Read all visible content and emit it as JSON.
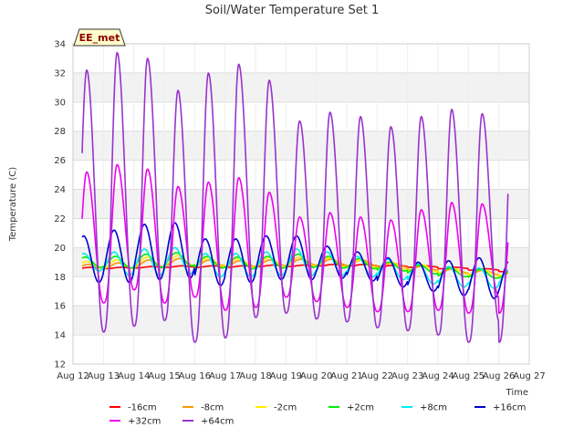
{
  "chart_data": {
    "type": "line",
    "title": "Soil/Water Temperature Set 1",
    "xlabel": "Time",
    "ylabel": "Temperature (C)",
    "badge": "EE_met",
    "ylim": [
      12,
      34
    ],
    "xlim": [
      12,
      27
    ],
    "yticks": [
      12,
      14,
      16,
      18,
      20,
      22,
      24,
      26,
      28,
      30,
      32,
      34
    ],
    "xticks": [
      {
        "v": 12,
        "label": "Aug 12"
      },
      {
        "v": 13,
        "label": "Aug 13"
      },
      {
        "v": 14,
        "label": "Aug 14"
      },
      {
        "v": 15,
        "label": "Aug 15"
      },
      {
        "v": 16,
        "label": "Aug 16"
      },
      {
        "v": 17,
        "label": "Aug 17"
      },
      {
        "v": 18,
        "label": "Aug 18"
      },
      {
        "v": 19,
        "label": "Aug 19"
      },
      {
        "v": 20,
        "label": "Aug 20"
      },
      {
        "v": 21,
        "label": "Aug 21"
      },
      {
        "v": 22,
        "label": "Aug 22"
      },
      {
        "v": 23,
        "label": "Aug 23"
      },
      {
        "v": 24,
        "label": "Aug 24"
      },
      {
        "v": 25,
        "label": "Aug 25"
      },
      {
        "v": 26,
        "label": "Aug 26"
      },
      {
        "v": 27,
        "label": "Aug 27"
      }
    ],
    "grid": true,
    "x_start": 12.3,
    "x_end": 26.3,
    "series": [
      {
        "name": "-16cm",
        "color": "#ff0000",
        "daily_mean": [
          18.6,
          18.6,
          18.65,
          18.7,
          18.7,
          18.7,
          18.75,
          18.75,
          18.8,
          18.8,
          18.75,
          18.7,
          18.6,
          18.5,
          18.4
        ],
        "daily_amp": [
          0.05,
          0.05,
          0.05,
          0.05,
          0.05,
          0.05,
          0.05,
          0.05,
          0.05,
          0.05,
          0.05,
          0.05,
          0.05,
          0.05,
          0.05
        ],
        "peak_offset": 0.1
      },
      {
        "name": "-8cm",
        "color": "#ff9900",
        "daily_mean": [
          18.7,
          18.75,
          18.9,
          19.0,
          18.95,
          18.9,
          18.95,
          19.0,
          19.0,
          18.95,
          18.8,
          18.6,
          18.4,
          18.3,
          18.2
        ],
        "daily_amp": [
          0.15,
          0.2,
          0.25,
          0.25,
          0.2,
          0.2,
          0.2,
          0.2,
          0.2,
          0.2,
          0.15,
          0.15,
          0.15,
          0.15,
          0.15
        ],
        "peak_offset": 0.0
      },
      {
        "name": "-2cm",
        "color": "#ffee00",
        "daily_mean": [
          18.8,
          18.85,
          19.0,
          19.1,
          19.0,
          18.95,
          19.0,
          19.05,
          19.0,
          18.9,
          18.75,
          18.6,
          18.4,
          18.3,
          18.2
        ],
        "daily_amp": [
          0.25,
          0.3,
          0.35,
          0.35,
          0.3,
          0.3,
          0.3,
          0.3,
          0.3,
          0.25,
          0.25,
          0.25,
          0.2,
          0.2,
          0.2
        ],
        "peak_offset": -0.05
      },
      {
        "name": "+2cm",
        "color": "#00ee00",
        "daily_mean": [
          19.0,
          19.0,
          19.1,
          19.2,
          19.0,
          18.95,
          19.0,
          19.1,
          19.0,
          18.9,
          18.7,
          18.5,
          18.3,
          18.2,
          18.1
        ],
        "daily_amp": [
          0.35,
          0.4,
          0.45,
          0.45,
          0.4,
          0.4,
          0.4,
          0.45,
          0.4,
          0.35,
          0.3,
          0.3,
          0.3,
          0.3,
          0.25
        ],
        "peak_offset": -0.1
      },
      {
        "name": "+8cm",
        "color": "#00eeee",
        "daily_mean": [
          19.0,
          18.9,
          19.0,
          19.1,
          18.8,
          18.8,
          18.9,
          19.0,
          18.9,
          18.7,
          18.5,
          18.2,
          18.0,
          17.9,
          17.9
        ],
        "daily_amp": [
          0.6,
          0.8,
          0.9,
          0.9,
          0.8,
          0.8,
          0.8,
          0.9,
          0.8,
          0.7,
          0.7,
          0.7,
          0.7,
          0.7,
          0.6
        ],
        "peak_offset": -0.15
      },
      {
        "name": "+16cm",
        "color": "#0000cc",
        "daily_mean": [
          19.2,
          19.4,
          19.7,
          19.8,
          19.0,
          19.1,
          19.3,
          19.3,
          19.0,
          18.7,
          18.3,
          18.0,
          17.9,
          17.9,
          17.8
        ],
        "daily_amp": [
          1.6,
          1.8,
          1.9,
          1.9,
          1.6,
          1.5,
          1.5,
          1.5,
          1.1,
          1.0,
          1.0,
          1.0,
          1.2,
          1.4,
          1.3
        ],
        "peak_offset": -0.15
      },
      {
        "name": "+32cm",
        "color": "#ee00ee",
        "daily_max": [
          25.2,
          25.7,
          25.4,
          24.2,
          24.5,
          24.8,
          23.8,
          22.1,
          22.4,
          22.1,
          21.9,
          22.6,
          23.1,
          23.0
        ],
        "daily_min": [
          16.0,
          16.2,
          17.1,
          16.2,
          16.6,
          15.7,
          15.9,
          16.6,
          16.3,
          15.9,
          15.6,
          15.6,
          15.7,
          15.5,
          16.6
        ],
        "peak_offset": -0.05
      },
      {
        "name": "+64cm",
        "color": "#9933cc",
        "daily_max": [
          32.2,
          33.4,
          33.0,
          30.8,
          32.0,
          32.6,
          31.5,
          28.7,
          29.3,
          29.0,
          28.3,
          29.0,
          29.5,
          29.2
        ],
        "daily_min": [
          15.9,
          14.2,
          14.6,
          15.0,
          13.5,
          13.8,
          15.2,
          15.5,
          15.1,
          14.9,
          14.5,
          14.3,
          14.0,
          13.5,
          15.0
        ],
        "peak_offset": -0.05
      }
    ],
    "legend_placement": "bottom"
  }
}
